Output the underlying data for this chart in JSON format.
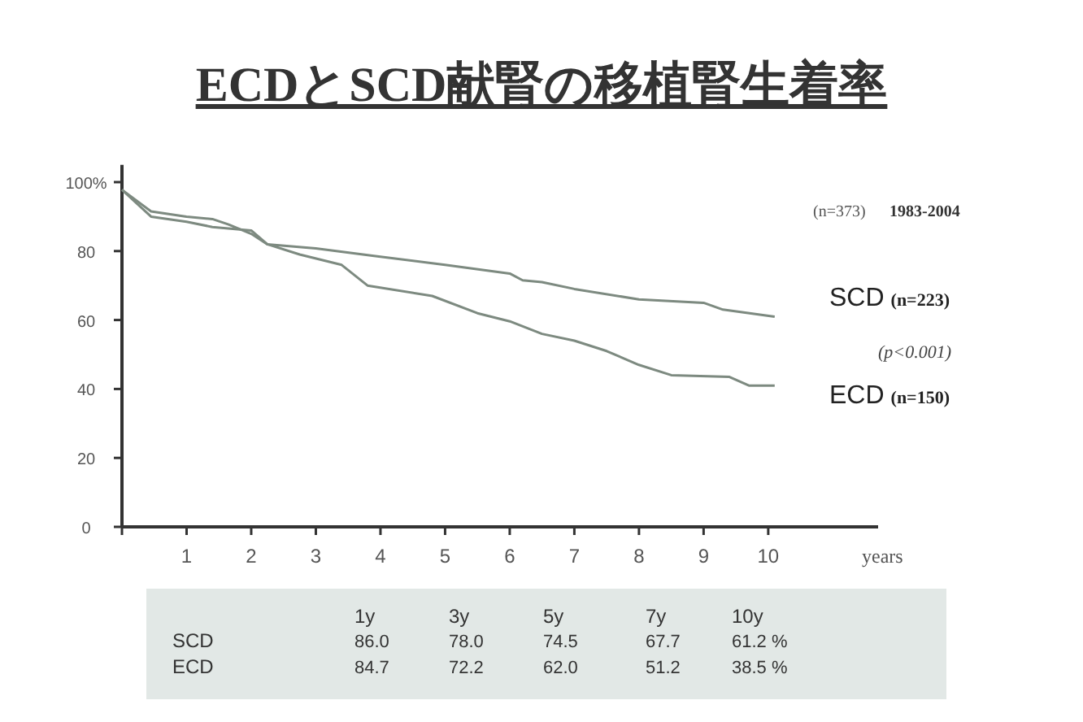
{
  "chart_data": {
    "type": "line",
    "title": "ECDとSCD献腎の移植腎生着率",
    "xlabel": "years",
    "xlim": [
      0,
      11.7
    ],
    "ylim": [
      0,
      105
    ],
    "xticks": [
      {
        "value": 0,
        "label": null
      },
      1,
      2,
      3,
      4,
      5,
      6,
      7,
      8,
      9,
      10
    ],
    "yticks": [
      0,
      20,
      40,
      60,
      80,
      {
        "value": 100,
        "label": "100%"
      }
    ],
    "series": [
      {
        "name": "SCD (n=223)",
        "color": "#7d8a80",
        "x": [
          0,
          0.45,
          1.0,
          1.4,
          1.65,
          2.0,
          2.25,
          3.0,
          3.9,
          5.0,
          6.0,
          6.2,
          6.5,
          7.0,
          8.0,
          9.0,
          9.3,
          10.1
        ],
        "values": [
          97.8,
          91.5,
          90,
          89.3,
          87.7,
          85,
          82,
          80.8,
          78.6,
          76,
          73.5,
          71.5,
          71,
          69,
          66,
          65,
          63,
          61
        ]
      },
      {
        "name": "ECD (n=150)",
        "color": "#7d8a80",
        "x": [
          0,
          0.45,
          1.0,
          1.4,
          2.0,
          2.25,
          2.75,
          3.4,
          3.8,
          4.8,
          5.5,
          6.0,
          6.5,
          7.0,
          7.5,
          8.0,
          8.5,
          9.4,
          9.7,
          10.1
        ],
        "values": [
          97.8,
          90,
          88.5,
          87,
          86,
          82,
          79,
          76,
          70,
          67,
          62,
          59.6,
          56,
          54,
          51,
          47,
          44,
          43.5,
          41,
          41
        ]
      }
    ],
    "annotations": [
      "(n=373)",
      "1983-2004",
      "(p<0.001)",
      "1y",
      "3y",
      "5y",
      "7y",
      "10y",
      "SCD",
      "86.0",
      "78.0",
      "74.5",
      "67.7",
      "61.2 %",
      "ECD",
      "84.7",
      "72.2",
      "62.0",
      "51.2",
      "38.5 %"
    ]
  }
}
